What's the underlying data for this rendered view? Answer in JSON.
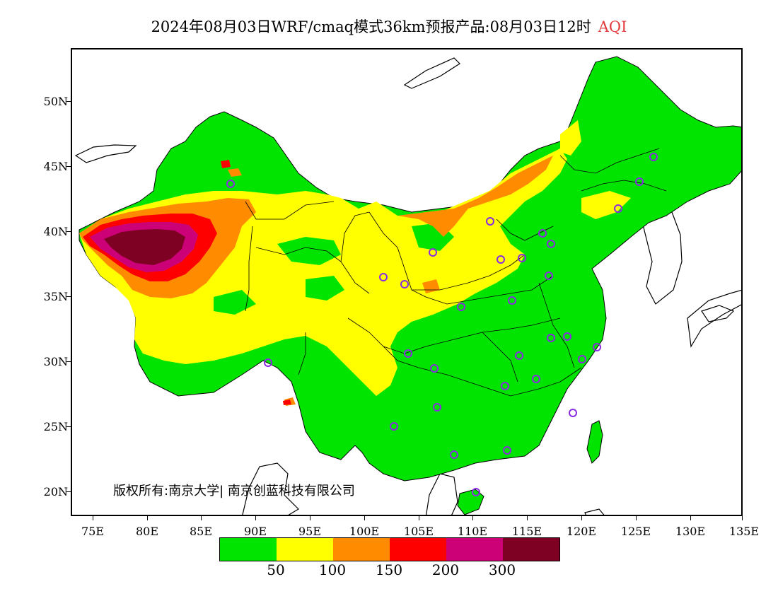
{
  "title": {
    "main": "2024年08月03日WRF/cmaq模式36km预报产品:08月03日12时",
    "variable": "AQI",
    "variable_color": "#e23c3c"
  },
  "axes": {
    "lat_labels": [
      "50N",
      "45N",
      "40N",
      "35N",
      "30N",
      "25N",
      "20N"
    ],
    "lon_labels": [
      "75E",
      "80E",
      "85E",
      "90E",
      "95E",
      "100E",
      "105E",
      "110E",
      "115E",
      "120E",
      "125E",
      "130E",
      "135E"
    ]
  },
  "copyright": "版权所有:南京大学| 南京创蓝科技有限公司",
  "legend": {
    "colors": [
      "#00e400",
      "#ffff00",
      "#ff8c00",
      "#ff0000",
      "#cc0077",
      "#7e0023"
    ],
    "labels": [
      "50",
      "100",
      "150",
      "200",
      "300"
    ]
  },
  "map_colors": {
    "good": "#00e400",
    "moderate": "#ffff00",
    "usg": "#ff8c00",
    "unhealthy": "#ff0000",
    "very_unhealthy": "#cc0077",
    "hazardous": "#7e0023",
    "station_marker": "#8a2be2",
    "border": "#000000"
  }
}
